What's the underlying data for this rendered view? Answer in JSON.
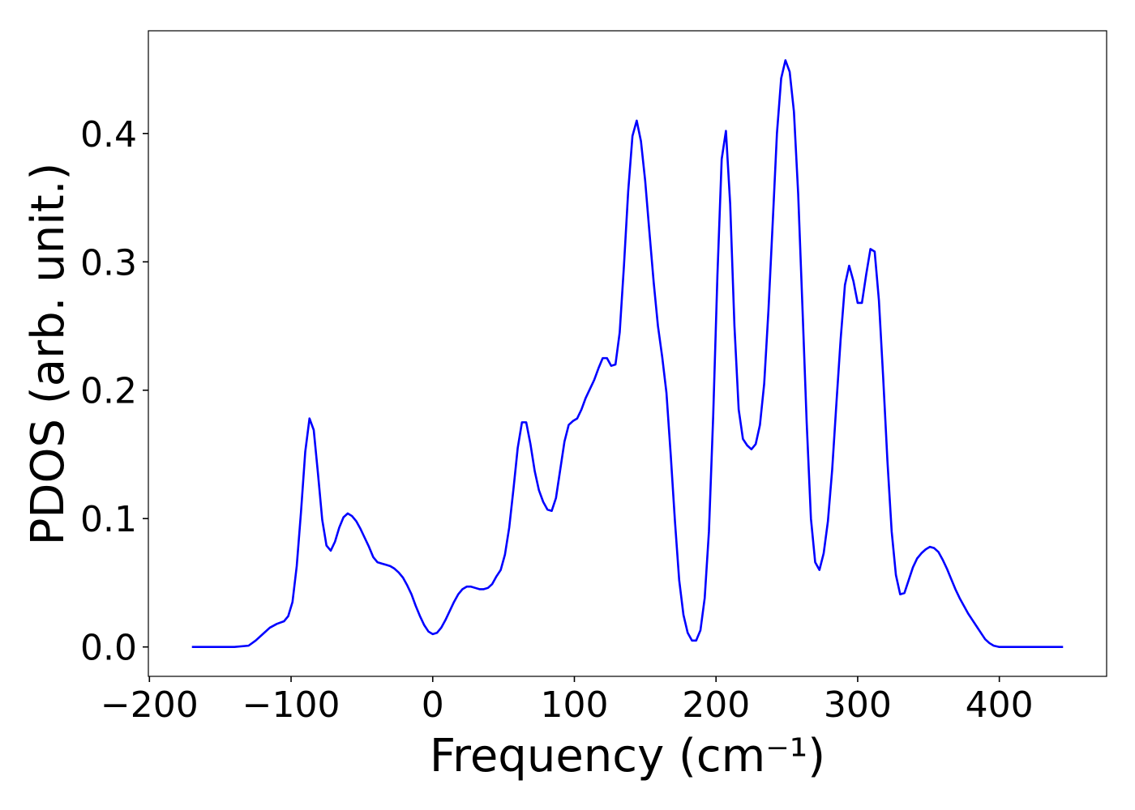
{
  "chart_data": {
    "type": "line",
    "xlabel": "Frequency (cm⁻¹)",
    "ylabel": "PDOS (arb. unit.)",
    "xlim": [
      -200.75,
      475.75
    ],
    "ylim": [
      -0.0229,
      0.48
    ],
    "xticks": [
      {
        "value": -200,
        "label": "−200"
      },
      {
        "value": -100,
        "label": "−100"
      },
      0,
      100,
      200,
      300,
      400
    ],
    "yticks": [
      {
        "value": 0,
        "label": "0.0"
      },
      0.1,
      0.2,
      0.3,
      0.4
    ],
    "grid": false,
    "x": [
      -170,
      -140,
      -130,
      -125,
      -120,
      -115,
      -110,
      -105,
      -102,
      -99,
      -96,
      -93,
      -90,
      -87,
      -84,
      -81,
      -78,
      -75,
      -72,
      -69,
      -66,
      -63,
      -60,
      -57,
      -54,
      -51,
      -48,
      -45,
      -42,
      -39,
      -36,
      -33,
      -30,
      -27,
      -24,
      -21,
      -18,
      -15,
      -12,
      -9,
      -6,
      -3,
      0,
      3,
      6,
      9,
      12,
      15,
      18,
      21,
      24,
      27,
      30,
      33,
      36,
      39,
      42,
      45,
      48,
      51,
      54,
      57,
      60,
      63,
      66,
      69,
      72,
      75,
      78,
      81,
      84,
      87,
      90,
      93,
      96,
      99,
      102,
      105,
      108,
      111,
      114,
      117,
      120,
      123,
      126,
      129,
      132,
      135,
      138,
      141,
      144,
      147,
      150,
      153,
      156,
      159,
      162,
      165,
      168,
      171,
      174,
      177,
      180,
      183,
      186,
      189,
      192,
      195,
      198,
      201,
      204,
      207,
      210,
      213,
      216,
      219,
      222,
      225,
      228,
      231,
      234,
      237,
      240,
      243,
      246,
      249,
      252,
      255,
      258,
      261,
      264,
      267,
      270,
      273,
      276,
      279,
      282,
      285,
      288,
      291,
      294,
      297,
      300,
      303,
      306,
      309,
      312,
      315,
      318,
      321,
      324,
      327,
      330,
      333,
      336,
      339,
      342,
      345,
      348,
      351,
      354,
      357,
      360,
      363,
      366,
      369,
      372,
      375,
      378,
      381,
      384,
      387,
      390,
      393,
      396,
      400,
      445
    ],
    "series": [
      {
        "name": "PDOS",
        "color": "#0000ff",
        "values": [
          0,
          0,
          0.001,
          0.005,
          0.01,
          0.015,
          0.018,
          0.02,
          0.024,
          0.035,
          0.063,
          0.105,
          0.152,
          0.178,
          0.169,
          0.135,
          0.099,
          0.079,
          0.075,
          0.082,
          0.093,
          0.101,
          0.104,
          0.102,
          0.098,
          0.092,
          0.085,
          0.078,
          0.07,
          0.066,
          0.065,
          0.064,
          0.063,
          0.061,
          0.058,
          0.054,
          0.048,
          0.041,
          0.032,
          0.024,
          0.017,
          0.012,
          0.01,
          0.011,
          0.015,
          0.021,
          0.028,
          0.035,
          0.041,
          0.045,
          0.047,
          0.047,
          0.046,
          0.045,
          0.045,
          0.046,
          0.049,
          0.055,
          0.06,
          0.072,
          0.093,
          0.123,
          0.155,
          0.175,
          0.175,
          0.158,
          0.137,
          0.122,
          0.113,
          0.107,
          0.106,
          0.116,
          0.138,
          0.16,
          0.173,
          0.176,
          0.178,
          0.185,
          0.194,
          0.201,
          0.208,
          0.217,
          0.225,
          0.225,
          0.219,
          0.22,
          0.245,
          0.297,
          0.355,
          0.398,
          0.41,
          0.394,
          0.363,
          0.323,
          0.284,
          0.25,
          0.226,
          0.198,
          0.15,
          0.098,
          0.052,
          0.025,
          0.011,
          0.005,
          0.005,
          0.013,
          0.038,
          0.09,
          0.18,
          0.29,
          0.38,
          0.402,
          0.345,
          0.25,
          0.185,
          0.162,
          0.157,
          0.154,
          0.158,
          0.173,
          0.205,
          0.262,
          0.33,
          0.4,
          0.443,
          0.457,
          0.448,
          0.417,
          0.353,
          0.265,
          0.175,
          0.1,
          0.066,
          0.06,
          0.073,
          0.098,
          0.138,
          0.19,
          0.24,
          0.282,
          0.297,
          0.285,
          0.268,
          0.268,
          0.29,
          0.31,
          0.308,
          0.27,
          0.21,
          0.145,
          0.09,
          0.056,
          0.041,
          0.042,
          0.052,
          0.062,
          0.069,
          0.073,
          0.076,
          0.078,
          0.077,
          0.074,
          0.068,
          0.061,
          0.053,
          0.045,
          0.038,
          0.032,
          0.026,
          0.021,
          0.016,
          0.011,
          0.006,
          0.003,
          0.001,
          0,
          0
        ]
      }
    ]
  }
}
